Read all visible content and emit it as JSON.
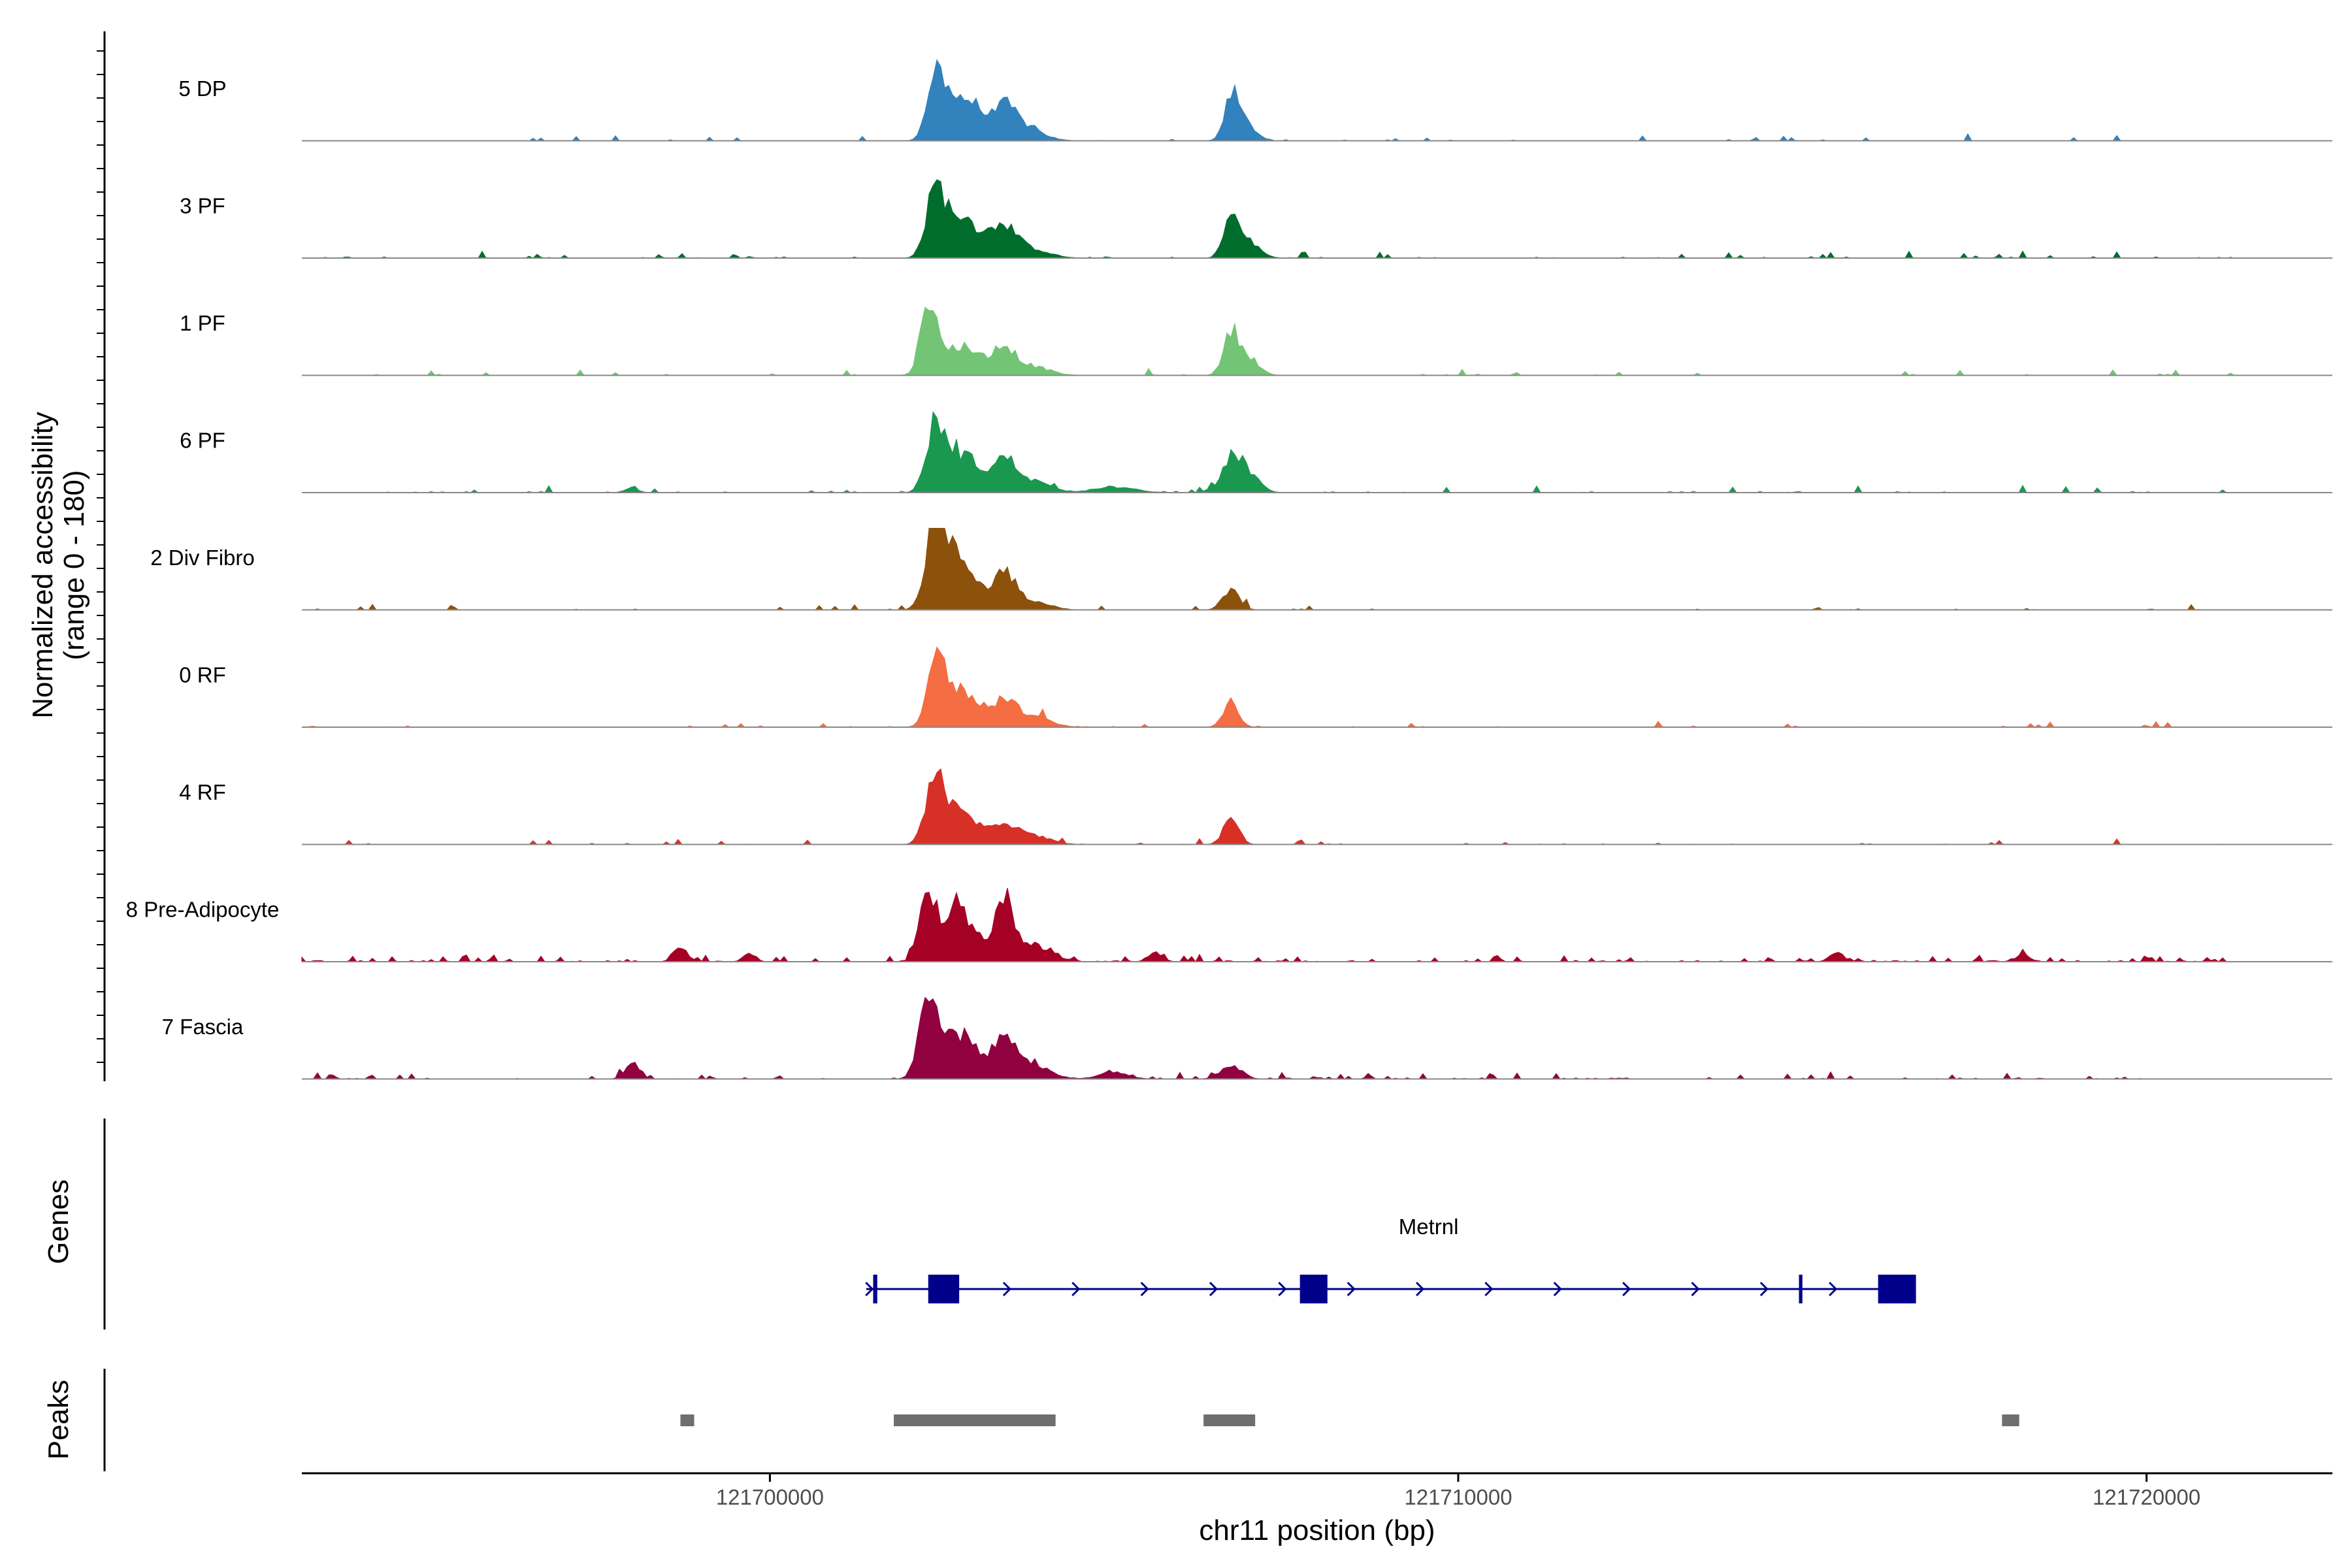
{
  "chart_data": {
    "type": "area",
    "title": "",
    "y_axis_title": [
      "Normalized accessibility",
      "(range 0 - 180)"
    ],
    "ylim": [
      0,
      180
    ],
    "grid": false,
    "legend": "none",
    "x_axis": {
      "title": "chr11 position (bp)",
      "range": [
        121693200,
        121722700
      ],
      "ticks": [
        121700000,
        121710000,
        121720000
      ],
      "tick_labels": [
        "121700000",
        "121710000",
        "121720000"
      ]
    },
    "tracks": [
      {
        "name": "5 DP",
        "color": "#3182bd",
        "noise": 0.03,
        "peaks": [
          [
            121702400,
            140,
            120
          ],
          [
            121702700,
            85,
            180
          ],
          [
            121703000,
            55,
            150
          ],
          [
            121703400,
            65,
            160
          ],
          [
            121703700,
            30,
            250
          ],
          [
            121706700,
            85,
            100
          ],
          [
            121706900,
            40,
            150
          ]
        ]
      },
      {
        "name": "3 PF",
        "color": "#006d2c",
        "noise": 0.04,
        "peaks": [
          [
            121702400,
            140,
            130
          ],
          [
            121702700,
            80,
            180
          ],
          [
            121703000,
            45,
            180
          ],
          [
            121703400,
            70,
            170
          ],
          [
            121703800,
            20,
            250
          ],
          [
            121706700,
            85,
            110
          ],
          [
            121706950,
            35,
            160
          ]
        ]
      },
      {
        "name": "1 PF",
        "color": "#74c476",
        "noise": 0.03,
        "peaks": [
          [
            121702300,
            170,
            110
          ],
          [
            121702700,
            60,
            200
          ],
          [
            121703000,
            30,
            150
          ],
          [
            121703400,
            60,
            160
          ],
          [
            121703800,
            20,
            250
          ],
          [
            121706700,
            90,
            110
          ],
          [
            121706950,
            40,
            150
          ]
        ]
      },
      {
        "name": "6 PF",
        "color": "#1a9850",
        "noise": 0.05,
        "peaks": [
          [
            121702400,
            140,
            130
          ],
          [
            121702700,
            80,
            180
          ],
          [
            121703000,
            40,
            150
          ],
          [
            121703400,
            70,
            170
          ],
          [
            121703800,
            25,
            250
          ],
          [
            121706700,
            70,
            140
          ],
          [
            121706950,
            40,
            160
          ],
          [
            121698000,
            12,
            80
          ],
          [
            121705000,
            12,
            300
          ]
        ]
      },
      {
        "name": "2 Div Fibro",
        "color": "#8c510a",
        "noise": 0.03,
        "peaks": [
          [
            121702400,
            200,
            130
          ],
          [
            121702700,
            110,
            180
          ],
          [
            121703000,
            40,
            150
          ],
          [
            121703400,
            80,
            160
          ],
          [
            121703800,
            20,
            250
          ],
          [
            121706700,
            45,
            120
          ]
        ]
      },
      {
        "name": "0 RF",
        "color": "#f46d43",
        "noise": 0.03,
        "peaks": [
          [
            121702400,
            150,
            120
          ],
          [
            121702700,
            75,
            180
          ],
          [
            121703000,
            40,
            150
          ],
          [
            121703400,
            60,
            160
          ],
          [
            121703800,
            25,
            250
          ],
          [
            121706700,
            55,
            110
          ]
        ]
      },
      {
        "name": "4 RF",
        "color": "#d73027",
        "noise": 0.03,
        "peaks": [
          [
            121702400,
            150,
            130
          ],
          [
            121702700,
            65,
            180
          ],
          [
            121703000,
            30,
            150
          ],
          [
            121703400,
            45,
            160
          ],
          [
            121703800,
            20,
            250
          ],
          [
            121706700,
            60,
            110
          ]
        ]
      },
      {
        "name": "8 Pre-Adipocyte",
        "color": "#a50026",
        "noise": 0.12,
        "peaks": [
          [
            121702300,
            150,
            120
          ],
          [
            121702700,
            110,
            180
          ],
          [
            121703000,
            40,
            150
          ],
          [
            121703400,
            120,
            140
          ],
          [
            121703800,
            40,
            250
          ],
          [
            121698700,
            30,
            100
          ],
          [
            121699700,
            20,
            80
          ],
          [
            121705600,
            20,
            100
          ],
          [
            121715500,
            20,
            100
          ],
          [
            121718200,
            15,
            100
          ]
        ]
      },
      {
        "name": "7 Fascia",
        "color": "#91003f",
        "noise": 0.08,
        "peaks": [
          [
            121702300,
            180,
            130
          ],
          [
            121702700,
            90,
            180
          ],
          [
            121703000,
            40,
            150
          ],
          [
            121703400,
            90,
            160
          ],
          [
            121703800,
            30,
            250
          ],
          [
            121698000,
            35,
            100
          ],
          [
            121706700,
            30,
            150
          ],
          [
            121705000,
            15,
            200
          ]
        ]
      }
    ],
    "genes_track_title": "Genes",
    "gene": {
      "name": "Metrnl",
      "strand": "+",
      "start": 121701400,
      "end": 121716600,
      "exons": [
        [
          121701500,
          121701560
        ],
        [
          121702300,
          121702750
        ],
        [
          121707700,
          121708100
        ],
        [
          121714950,
          121715000
        ],
        [
          121716100,
          121716650
        ]
      ]
    },
    "peaks_track_title": "Peaks",
    "peak_regions": [
      [
        121698700,
        121698900
      ],
      [
        121701800,
        121704150
      ],
      [
        121706300,
        121707050
      ],
      [
        121717900,
        121718150
      ]
    ]
  }
}
